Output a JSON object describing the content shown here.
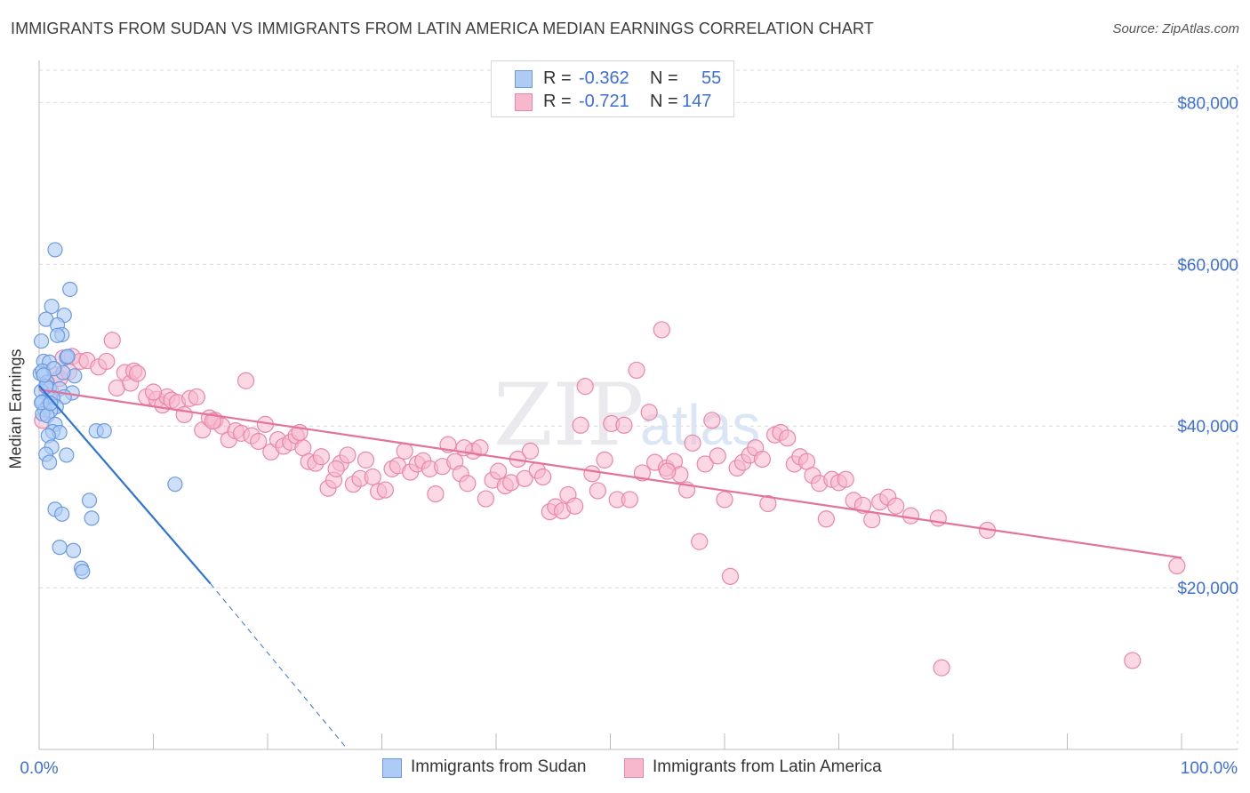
{
  "title": "IMMIGRANTS FROM SUDAN VS IMMIGRANTS FROM LATIN AMERICA MEDIAN EARNINGS CORRELATION CHART",
  "source": "Source: ZipAtlas.com",
  "watermark": {
    "zip": "ZIP",
    "atlas": "atlas"
  },
  "colors": {
    "sudan_fill": "#aecbf5",
    "sudan_stroke": "#6b9ae0",
    "sudan_line": "#2f74d6",
    "latam_fill": "#f7b8cd",
    "latam_stroke": "#ea86a8",
    "latam_line": "#e3739b",
    "tick_text": "#3d6fd6",
    "grid": "#d9d9d9"
  },
  "legend": {
    "row1": {
      "r_label": "R =",
      "r_value": "-0.362",
      "n_label": "N =",
      "n_value": "55"
    },
    "row2": {
      "r_label": "R =",
      "r_value": "-0.721",
      "n_label": "N =",
      "n_value": "147"
    }
  },
  "chart_data": {
    "type": "scatter",
    "title": "IMMIGRANTS FROM SUDAN VS IMMIGRANTS FROM LATIN AMERICA MEDIAN EARNINGS CORRELATION CHART",
    "xlabel": "",
    "ylabel": "Median Earnings",
    "xlim": [
      0,
      100
    ],
    "ylim": [
      0,
      84000
    ],
    "x_tick_labels": [
      "0.0%",
      "100.0%"
    ],
    "y_ticks": [
      20000,
      40000,
      60000,
      80000
    ],
    "y_tick_labels": [
      "$20,000",
      "$40,000",
      "$60,000",
      "$80,000"
    ],
    "grid": true,
    "series": [
      {
        "name": "Immigrants from Sudan",
        "R": -0.362,
        "N": 55,
        "trend": {
          "x0": 0.0,
          "y0": 45000,
          "x1": 15.0,
          "y1": 20500,
          "dashed_to_x": 27.0,
          "dashed_to_y": 0
        },
        "points": [
          [
            1.4,
            61800
          ],
          [
            2.7,
            56900
          ],
          [
            1.1,
            54800
          ],
          [
            2.2,
            53700
          ],
          [
            0.6,
            53200
          ],
          [
            1.6,
            52500
          ],
          [
            2.0,
            51300
          ],
          [
            1.6,
            51200
          ],
          [
            0.2,
            50500
          ],
          [
            0.4,
            48000
          ],
          [
            0.9,
            47900
          ],
          [
            2.4,
            48500
          ],
          [
            0.1,
            46500
          ],
          [
            0.3,
            46800
          ],
          [
            3.1,
            46200
          ],
          [
            2.1,
            46600
          ],
          [
            0.7,
            45400
          ],
          [
            0.9,
            44600
          ],
          [
            1.8,
            44600
          ],
          [
            2.9,
            44100
          ],
          [
            0.2,
            44300
          ],
          [
            2.2,
            43600
          ],
          [
            1.2,
            43500
          ],
          [
            0.3,
            43000
          ],
          [
            0.8,
            42600
          ],
          [
            1.5,
            42400
          ],
          [
            0.5,
            42000
          ],
          [
            1.0,
            41900
          ],
          [
            0.3,
            41500
          ],
          [
            0.7,
            41300
          ],
          [
            1.4,
            40200
          ],
          [
            1.2,
            39300
          ],
          [
            1.8,
            39200
          ],
          [
            5.0,
            39400
          ],
          [
            5.7,
            39400
          ],
          [
            0.8,
            38800
          ],
          [
            1.1,
            37400
          ],
          [
            0.6,
            36500
          ],
          [
            2.4,
            36400
          ],
          [
            0.9,
            35500
          ],
          [
            11.9,
            32800
          ],
          [
            4.4,
            30800
          ],
          [
            1.4,
            29700
          ],
          [
            2.0,
            29100
          ],
          [
            4.6,
            28600
          ],
          [
            1.8,
            25000
          ],
          [
            3.0,
            24600
          ],
          [
            3.7,
            22400
          ],
          [
            3.8,
            22000
          ],
          [
            0.2,
            42900
          ],
          [
            1.0,
            42800
          ],
          [
            0.6,
            44900
          ],
          [
            1.3,
            47100
          ],
          [
            2.5,
            48600
          ],
          [
            0.4,
            46300
          ]
        ]
      },
      {
        "name": "Immigrants from Latin America",
        "R": -0.721,
        "N": 147,
        "trend": {
          "x0": 0.0,
          "y0": 44500,
          "x1": 100.0,
          "y1": 23700
        },
        "points": [
          [
            0.3,
            40700
          ],
          [
            1.5,
            46300
          ],
          [
            2.1,
            48400
          ],
          [
            2.9,
            48600
          ],
          [
            3.6,
            48000
          ],
          [
            4.2,
            48100
          ],
          [
            5.2,
            47300
          ],
          [
            5.9,
            48000
          ],
          [
            6.4,
            50600
          ],
          [
            1.0,
            44300
          ],
          [
            1.8,
            45900
          ],
          [
            2.6,
            46700
          ],
          [
            6.8,
            44700
          ],
          [
            7.5,
            46600
          ],
          [
            8.0,
            45300
          ],
          [
            8.3,
            46800
          ],
          [
            8.6,
            46500
          ],
          [
            9.4,
            43600
          ],
          [
            10.3,
            43300
          ],
          [
            10.8,
            42600
          ],
          [
            11.2,
            43600
          ],
          [
            11.6,
            43200
          ],
          [
            12.1,
            42900
          ],
          [
            12.7,
            41400
          ],
          [
            13.2,
            43400
          ],
          [
            13.8,
            43600
          ],
          [
            14.3,
            39500
          ],
          [
            14.9,
            41000
          ],
          [
            15.4,
            40700
          ],
          [
            16.0,
            40000
          ],
          [
            16.6,
            38300
          ],
          [
            17.2,
            39400
          ],
          [
            17.7,
            39100
          ],
          [
            18.1,
            45600
          ],
          [
            18.6,
            38800
          ],
          [
            19.2,
            38100
          ],
          [
            19.8,
            40200
          ],
          [
            20.3,
            36800
          ],
          [
            20.9,
            38300
          ],
          [
            21.4,
            37500
          ],
          [
            22.0,
            38000
          ],
          [
            22.5,
            38800
          ],
          [
            23.1,
            37300
          ],
          [
            23.6,
            35600
          ],
          [
            24.2,
            35400
          ],
          [
            24.7,
            36200
          ],
          [
            25.3,
            32300
          ],
          [
            25.8,
            33300
          ],
          [
            26.4,
            35400
          ],
          [
            27.0,
            36400
          ],
          [
            27.5,
            32800
          ],
          [
            28.1,
            33500
          ],
          [
            28.6,
            35800
          ],
          [
            29.2,
            33700
          ],
          [
            29.7,
            31900
          ],
          [
            30.3,
            32100
          ],
          [
            30.9,
            34700
          ],
          [
            31.4,
            35100
          ],
          [
            32.0,
            36900
          ],
          [
            32.5,
            34300
          ],
          [
            33.1,
            35300
          ],
          [
            33.6,
            35700
          ],
          [
            34.2,
            34700
          ],
          [
            34.7,
            31600
          ],
          [
            35.3,
            35000
          ],
          [
            35.8,
            37700
          ],
          [
            36.4,
            35600
          ],
          [
            36.9,
            34100
          ],
          [
            37.5,
            32900
          ],
          [
            38.0,
            36900
          ],
          [
            38.6,
            37300
          ],
          [
            39.1,
            31000
          ],
          [
            39.7,
            33300
          ],
          [
            40.2,
            34400
          ],
          [
            40.8,
            32600
          ],
          [
            41.3,
            33000
          ],
          [
            41.9,
            35900
          ],
          [
            42.5,
            33500
          ],
          [
            43.0,
            36900
          ],
          [
            43.6,
            34500
          ],
          [
            44.1,
            33700
          ],
          [
            44.7,
            29400
          ],
          [
            45.2,
            30000
          ],
          [
            45.8,
            29500
          ],
          [
            46.3,
            31500
          ],
          [
            46.9,
            30100
          ],
          [
            47.4,
            40100
          ],
          [
            47.8,
            44900
          ],
          [
            48.4,
            34100
          ],
          [
            48.9,
            32000
          ],
          [
            49.5,
            35800
          ],
          [
            50.1,
            40300
          ],
          [
            50.6,
            30900
          ],
          [
            51.2,
            40100
          ],
          [
            51.7,
            30900
          ],
          [
            52.3,
            46900
          ],
          [
            52.8,
            34200
          ],
          [
            53.4,
            41700
          ],
          [
            53.9,
            35500
          ],
          [
            54.5,
            51900
          ],
          [
            54.9,
            34800
          ],
          [
            55.6,
            35600
          ],
          [
            56.1,
            34000
          ],
          [
            56.7,
            32100
          ],
          [
            57.2,
            37900
          ],
          [
            57.8,
            25700
          ],
          [
            58.3,
            35300
          ],
          [
            58.9,
            40700
          ],
          [
            59.4,
            36300
          ],
          [
            60.0,
            30900
          ],
          [
            60.5,
            21400
          ],
          [
            61.1,
            34800
          ],
          [
            61.6,
            35500
          ],
          [
            62.2,
            36400
          ],
          [
            62.7,
            37300
          ],
          [
            63.3,
            35900
          ],
          [
            63.8,
            30400
          ],
          [
            64.4,
            38900
          ],
          [
            64.9,
            39200
          ],
          [
            65.5,
            38500
          ],
          [
            66.1,
            35300
          ],
          [
            66.6,
            36200
          ],
          [
            67.2,
            35600
          ],
          [
            67.7,
            33900
          ],
          [
            68.3,
            32900
          ],
          [
            68.9,
            28500
          ],
          [
            69.4,
            33400
          ],
          [
            70.0,
            33000
          ],
          [
            70.6,
            33400
          ],
          [
            71.3,
            30800
          ],
          [
            72.1,
            30200
          ],
          [
            72.9,
            28400
          ],
          [
            73.6,
            30600
          ],
          [
            74.3,
            31200
          ],
          [
            75.0,
            30100
          ],
          [
            76.3,
            28900
          ],
          [
            78.7,
            28600
          ],
          [
            79.0,
            10100
          ],
          [
            83.0,
            27100
          ],
          [
            95.7,
            11000
          ],
          [
            99.6,
            22700
          ],
          [
            10.0,
            44200
          ],
          [
            15.2,
            40600
          ],
          [
            22.8,
            39200
          ],
          [
            26.0,
            34700
          ],
          [
            37.2,
            37300
          ],
          [
            55.0,
            34400
          ]
        ]
      }
    ]
  }
}
